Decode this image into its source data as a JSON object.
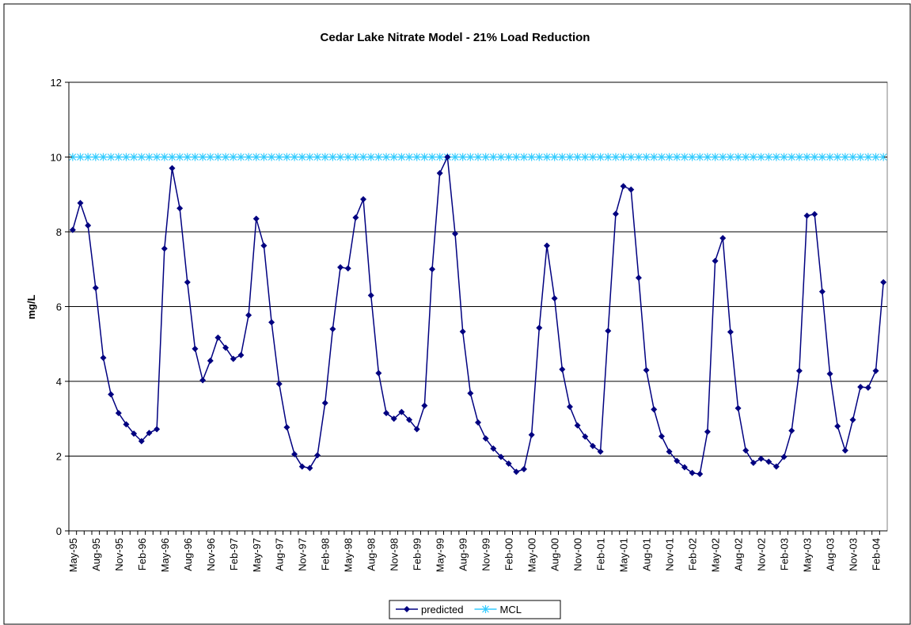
{
  "chart_data": {
    "type": "line",
    "title": "Cedar Lake Nitrate Model - 21% Load Reduction",
    "y_label": "mg/L",
    "categories": [
      "May-95",
      null,
      null,
      "Aug-95",
      null,
      null,
      "Nov-95",
      null,
      null,
      "Feb-96",
      null,
      null,
      "May-96",
      null,
      null,
      "Aug-96",
      null,
      null,
      "Nov-96",
      null,
      null,
      "Feb-97",
      null,
      null,
      "May-97",
      null,
      null,
      "Aug-97",
      null,
      null,
      "Nov-97",
      null,
      null,
      "Feb-98",
      null,
      null,
      "May-98",
      null,
      null,
      "Aug-98",
      null,
      null,
      "Nov-98",
      null,
      null,
      "Feb-99",
      null,
      null,
      "May-99",
      null,
      null,
      "Aug-99",
      null,
      null,
      "Nov-99",
      null,
      null,
      "Feb-00",
      null,
      null,
      "May-00",
      null,
      null,
      "Aug-00",
      null,
      null,
      "Nov-00",
      null,
      null,
      "Feb-01",
      null,
      null,
      "May-01",
      null,
      null,
      "Aug-01",
      null,
      null,
      "Nov-01",
      null,
      null,
      "Feb-02",
      null,
      null,
      "May-02",
      null,
      null,
      "Aug-02",
      null,
      null,
      "Nov-02",
      null,
      null,
      "Feb-03",
      null,
      null,
      "May-03",
      null,
      null,
      "Aug-03",
      null,
      null,
      "Nov-03",
      null,
      null,
      "Feb-04",
      null
    ],
    "series": [
      {
        "name": "predicted",
        "color": "#000080",
        "marker": "diamond",
        "values": [
          8.05,
          8.77,
          8.17,
          6.5,
          4.63,
          3.65,
          3.15,
          2.85,
          2.6,
          2.4,
          2.62,
          2.72,
          7.55,
          9.7,
          8.63,
          6.65,
          4.87,
          4.03,
          4.55,
          5.17,
          4.9,
          4.6,
          4.7,
          5.77,
          8.35,
          7.63,
          5.58,
          3.93,
          2.77,
          2.05,
          1.72,
          1.68,
          2.02,
          3.42,
          5.4,
          7.05,
          7.02,
          8.38,
          8.87,
          6.3,
          4.22,
          3.15,
          3.0,
          3.18,
          2.97,
          2.72,
          3.35,
          7.0,
          9.57,
          10.0,
          7.95,
          5.33,
          3.68,
          2.9,
          2.47,
          2.2,
          1.98,
          1.8,
          1.58,
          1.65,
          2.57,
          5.43,
          7.63,
          6.22,
          4.32,
          3.32,
          2.82,
          2.52,
          2.27,
          2.12,
          5.35,
          8.48,
          9.22,
          9.13,
          6.77,
          4.3,
          3.25,
          2.53,
          2.12,
          1.87,
          1.7,
          1.55,
          1.52,
          2.65,
          7.22,
          7.83,
          5.32,
          3.28,
          2.15,
          1.82,
          1.93,
          1.85,
          1.72,
          1.98,
          2.68,
          4.28,
          8.43,
          8.47,
          6.4,
          4.2,
          2.8,
          2.15,
          2.97,
          3.85,
          3.83,
          4.28,
          6.65
        ]
      },
      {
        "name": "MCL",
        "color": "#33ccff",
        "marker": "star",
        "values": [
          10,
          10,
          10,
          10,
          10,
          10,
          10,
          10,
          10,
          10,
          10,
          10,
          10,
          10,
          10,
          10,
          10,
          10,
          10,
          10,
          10,
          10,
          10,
          10,
          10,
          10,
          10,
          10,
          10,
          10,
          10,
          10,
          10,
          10,
          10,
          10,
          10,
          10,
          10,
          10,
          10,
          10,
          10,
          10,
          10,
          10,
          10,
          10,
          10,
          10,
          10,
          10,
          10,
          10,
          10,
          10,
          10,
          10,
          10,
          10,
          10,
          10,
          10,
          10,
          10,
          10,
          10,
          10,
          10,
          10,
          10,
          10,
          10,
          10,
          10,
          10,
          10,
          10,
          10,
          10,
          10,
          10,
          10,
          10,
          10,
          10,
          10,
          10,
          10,
          10,
          10,
          10,
          10,
          10,
          10,
          10,
          10,
          10,
          10,
          10,
          10,
          10,
          10,
          10,
          10,
          10,
          10
        ]
      }
    ],
    "ylim": [
      0,
      12
    ],
    "yticks": [
      0,
      2,
      4,
      6,
      8,
      10,
      12
    ],
    "grid": true,
    "legend": "bottom"
  }
}
